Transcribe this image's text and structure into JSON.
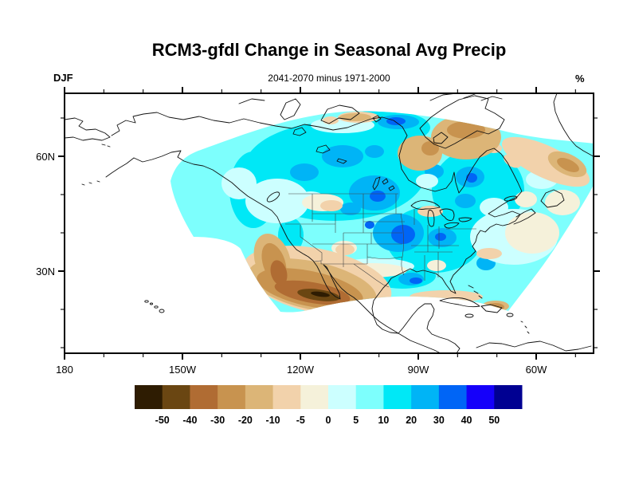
{
  "title": "RCM3-gfdl Change in Seasonal Avg Precip",
  "subtitle": "2041-2070 minus 1971-2000",
  "left_label": "DJF",
  "right_label": "%",
  "axes": {
    "x_major": [
      {
        "lon_w": 180,
        "label": "180"
      },
      {
        "lon_w": 150,
        "label": "150W"
      },
      {
        "lon_w": 120,
        "label": "120W"
      },
      {
        "lon_w": 90,
        "label": "90W"
      },
      {
        "lon_w": 60,
        "label": "60W"
      }
    ],
    "x_minor_lons_w": [
      170,
      160,
      140,
      130,
      110,
      100,
      80,
      70,
      50
    ],
    "y_major": [
      {
        "lat_n": 60,
        "label": "60N"
      },
      {
        "lat_n": 30,
        "label": "30N"
      }
    ],
    "y_minor_lats_n": [
      70,
      50,
      40,
      20,
      10
    ],
    "lon_range_w": [
      180,
      45.4
    ],
    "lat_range_n": [
      8.1,
      76.5
    ]
  },
  "colorbar": {
    "boundary_labels": [
      "-50",
      "-40",
      "-30",
      "-20",
      "-10",
      "-5",
      "0",
      "5",
      "10",
      "20",
      "30",
      "40",
      "50"
    ],
    "colors": [
      "#2e1c02",
      "#6a4612",
      "#b06c33",
      "#c8934f",
      "#dcb577",
      "#f2d2ab",
      "#f5f1da",
      "#ccffff",
      "#7dfffd",
      "#00e8f6",
      "#00b4f6",
      "#0065f6",
      "#1500fa",
      "#000092"
    ]
  },
  "chart_data": {
    "type": "filled-contour-map",
    "title": "RCM3-gfdl Change in Seasonal Avg Precip",
    "subtitle": "2041-2070 minus 1971-2000",
    "season": "DJF",
    "units": "%",
    "region": "North America regional climate model domain (fan-shaped), plotted on lat-lon axes 180-45W, ~8N-76N",
    "contour_levels": [
      -50,
      -40,
      -30,
      -20,
      -10,
      -5,
      0,
      5,
      10,
      20,
      30,
      40,
      50
    ],
    "palette_segments": [
      {
        "range": "< -50",
        "color": "#2e1c02"
      },
      {
        "range": "-50 to -40",
        "color": "#6a4612"
      },
      {
        "range": "-40 to -30",
        "color": "#b06c33"
      },
      {
        "range": "-30 to -20",
        "color": "#c8934f"
      },
      {
        "range": "-20 to -10",
        "color": "#dcb577"
      },
      {
        "range": "-10 to -5",
        "color": "#f2d2ab"
      },
      {
        "range": "-5 to 0",
        "color": "#f5f1da"
      },
      {
        "range": "0 to 5",
        "color": "#ccffff"
      },
      {
        "range": "5 to 10",
        "color": "#7dfffd"
      },
      {
        "range": "10 to 20",
        "color": "#00e8f6"
      },
      {
        "range": "20 to 30",
        "color": "#00b4f6"
      },
      {
        "range": "30 to 40",
        "color": "#0065f6"
      },
      {
        "range": "40 to 50",
        "color": "#1500fa"
      },
      {
        "range": "> 50",
        "color": "#000092"
      }
    ],
    "features": [
      {
        "region": "Most of Canada and northern/eastern United States",
        "change_pct": "+5 to +30"
      },
      {
        "region": "Upper Midwest (Iowa/Missouri) local maximum",
        "change_pct": "+30 to +40"
      },
      {
        "region": "Top-center of domain (Arctic, ~100W 72N)",
        "change_pct": "+20 to +40"
      },
      {
        "region": "Southwest US and northwestern Mexico (Sierra Madre)",
        "change_pct": "-10 to below -50"
      },
      {
        "region": "Baffin Island and land northwest of Hudson Bay",
        "change_pct": "-10 to -30"
      },
      {
        "region": "Northeast domain edge over Labrador Sea / Davis Strait",
        "change_pct": "-5 to -30"
      },
      {
        "region": "Southern plains and Gulf coastal strip",
        "change_pct": "-5 to +5"
      },
      {
        "region": "Western Atlantic off southeast US",
        "change_pct": "-5 to +10"
      },
      {
        "region": "Texas/Louisiana Gulf coast spot",
        "change_pct": "+20 to +40"
      }
    ],
    "legend_position": "bottom horizontal colorbar",
    "grid": false
  }
}
